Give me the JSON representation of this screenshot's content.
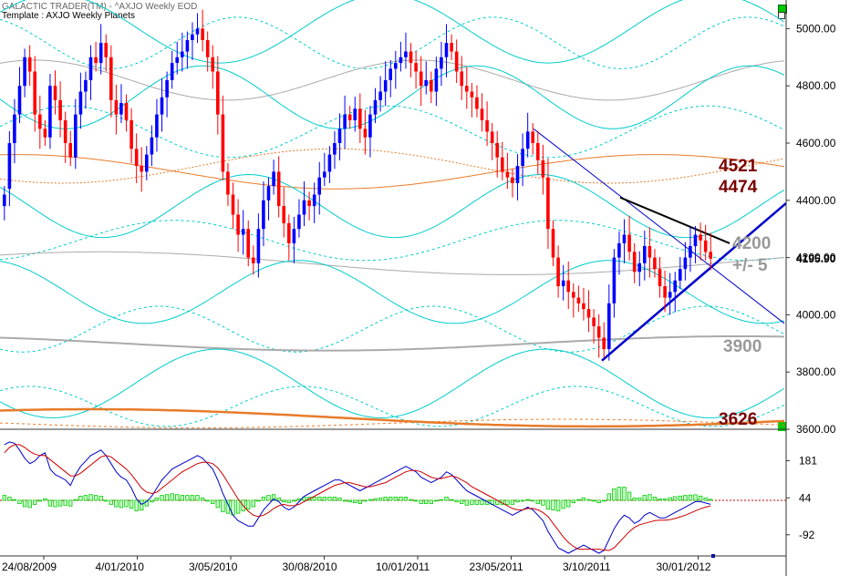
{
  "header": {
    "title": "GALACTIC TRADER(TM) - ^AXJO Weekly EOD",
    "template": "Template : AXJO Weekly Planets"
  },
  "chart_data": {
    "type": "candlestick",
    "title": "GALACTIC TRADER(TM) - ^AXJO Weekly EOD",
    "ylim": [
      3600,
      5100
    ],
    "y_ticks": [
      "5000.00",
      "4800.00",
      "4600.00",
      "4400.00",
      "4200.00",
      "4000.00",
      "3800.00",
      "3600.00"
    ],
    "last_price_label": "4195.90",
    "x_ticks": [
      "24/08/2009",
      "4/01/2010",
      "3/05/2010",
      "30/08/2010",
      "10/01/2011",
      "23/05/2011",
      "3/10/2011",
      "30/01/2012"
    ],
    "annotations": [
      {
        "text": "4521",
        "level": 4521,
        "color": "#7a0000"
      },
      {
        "text": "4474",
        "level": 4474,
        "color": "#7a0000"
      },
      {
        "text": "4200",
        "level": 4250,
        "color": "#999999"
      },
      {
        "text": "+/- 5",
        "level": 4178,
        "color": "#999999"
      },
      {
        "text": "3900",
        "level": 3900,
        "color": "#999999"
      },
      {
        "text": "3626",
        "level": 3640,
        "color": "#7a0000"
      }
    ],
    "indicator": {
      "y_ticks": [
        "181",
        "44",
        "-92"
      ],
      "zero_line_level": 35,
      "ylim": [
        -170,
        290
      ],
      "colors": {
        "fast": "#0000cc",
        "slow": "#cc0000",
        "histogram": "#00cc00"
      }
    },
    "colors": {
      "up": "#0000ff",
      "down": "#ff0000",
      "wave_light": "#00cccc",
      "wave_gray": "#aaaaaa",
      "wave_orange": "#e87b2a"
    },
    "series_close": [
      4420,
      4600,
      4700,
      4800,
      4900,
      4850,
      4700,
      4650,
      4620,
      4800,
      4750,
      4680,
      4600,
      4550,
      4700,
      4780,
      4820,
      4900,
      4880,
      4950,
      4900,
      4750,
      4700,
      4740,
      4680,
      4580,
      4520,
      4500,
      4560,
      4620,
      4700,
      4760,
      4820,
      4880,
      4900,
      4920,
      4960,
      4980,
      5000,
      4960,
      4900,
      4850,
      4700,
      4500,
      4420,
      4350,
      4280,
      4300,
      4200,
      4180,
      4300,
      4400,
      4450,
      4500,
      4380,
      4320,
      4250,
      4300,
      4350,
      4400,
      4380,
      4420,
      4480,
      4500,
      4560,
      4600,
      4650,
      4700,
      4680,
      4720,
      4650,
      4620,
      4700,
      4750,
      4780,
      4820,
      4860,
      4880,
      4900,
      4920,
      4880,
      4850,
      4800,
      4820,
      4780,
      4860,
      4900,
      4950,
      4920,
      4850,
      4800,
      4780,
      4760,
      4720,
      4680,
      4640,
      4600,
      4550,
      4500,
      4480,
      4460,
      4520,
      4580,
      4640,
      4600,
      4540,
      4480,
      4300,
      4200,
      4100,
      4120,
      4080,
      4060,
      4040,
      4020,
      3990,
      3960,
      3920,
      3880,
      4040,
      4200,
      4250,
      4280,
      4220,
      4150,
      4180,
      4240,
      4200,
      4160,
      4100,
      4060,
      4080,
      4120,
      4160,
      4200,
      4240,
      4280,
      4260,
      4220,
      4196
    ],
    "series_open": [
      4380,
      4440,
      4600,
      4700,
      4800,
      4900,
      4850,
      4700,
      4650,
      4620,
      4800,
      4750,
      4680,
      4600,
      4550,
      4700,
      4780,
      4820,
      4900,
      4880,
      4950,
      4900,
      4750,
      4700,
      4740,
      4680,
      4580,
      4520,
      4500,
      4560,
      4620,
      4700,
      4760,
      4820,
      4880,
      4900,
      4920,
      4960,
      4980,
      5000,
      4960,
      4900,
      4850,
      4700,
      4500,
      4420,
      4350,
      4280,
      4300,
      4200,
      4180,
      4300,
      4400,
      4450,
      4500,
      4380,
      4320,
      4250,
      4300,
      4350,
      4400,
      4380,
      4420,
      4480,
      4500,
      4560,
      4600,
      4650,
      4700,
      4680,
      4720,
      4650,
      4620,
      4700,
      4750,
      4780,
      4820,
      4860,
      4880,
      4900,
      4920,
      4880,
      4850,
      4800,
      4820,
      4780,
      4860,
      4900,
      4950,
      4920,
      4850,
      4800,
      4780,
      4760,
      4720,
      4680,
      4640,
      4600,
      4550,
      4500,
      4480,
      4460,
      4520,
      4580,
      4640,
      4600,
      4540,
      4480,
      4300,
      4200,
      4100,
      4120,
      4080,
      4060,
      4040,
      4020,
      3990,
      3960,
      3920,
      3880,
      4040,
      4200,
      4250,
      4280,
      4220,
      4150,
      4180,
      4240,
      4200,
      4160,
      4100,
      4060,
      4080,
      4120,
      4160,
      4200,
      4240,
      4280,
      4260,
      4220
    ],
    "series_fast": [
      240,
      250,
      245,
      220,
      190,
      170,
      180,
      200,
      210,
      150,
      130,
      120,
      110,
      90,
      130,
      160,
      180,
      200,
      210,
      220,
      200,
      170,
      140,
      120,
      110,
      80,
      40,
      20,
      30,
      50,
      80,
      110,
      130,
      150,
      160,
      170,
      180,
      190,
      200,
      190,
      170,
      150,
      110,
      60,
      20,
      -20,
      -40,
      -50,
      -60,
      -60,
      -30,
      0,
      20,
      40,
      30,
      10,
      0,
      10,
      30,
      50,
      60,
      70,
      80,
      90,
      100,
      110,
      110,
      100,
      90,
      80,
      70,
      80,
      90,
      100,
      110,
      120,
      130,
      140,
      150,
      160,
      150,
      140,
      120,
      110,
      100,
      110,
      120,
      140,
      130,
      110,
      90,
      70,
      60,
      50,
      40,
      30,
      20,
      10,
      0,
      -10,
      -20,
      -10,
      0,
      10,
      0,
      -20,
      -40,
      -80,
      -110,
      -140,
      -150,
      -160,
      -150,
      -140,
      -130,
      -140,
      -150,
      -160,
      -150,
      -110,
      -70,
      -40,
      -20,
      -30,
      -50,
      -40,
      -20,
      -10,
      -20,
      -30,
      -30,
      -20,
      -10,
      0,
      10,
      20,
      30,
      30,
      25,
      20
    ],
    "series_slow": [
      210,
      230,
      240,
      240,
      230,
      215,
      205,
      200,
      200,
      185,
      170,
      155,
      140,
      125,
      125,
      135,
      150,
      165,
      180,
      195,
      200,
      195,
      180,
      165,
      150,
      130,
      105,
      80,
      65,
      60,
      65,
      80,
      95,
      110,
      125,
      140,
      150,
      160,
      170,
      175,
      175,
      170,
      155,
      130,
      100,
      70,
      40,
      15,
      -5,
      -20,
      -25,
      -20,
      -10,
      5,
      15,
      20,
      15,
      15,
      20,
      30,
      40,
      50,
      60,
      70,
      80,
      90,
      95,
      100,
      100,
      95,
      90,
      85,
      85,
      90,
      95,
      100,
      110,
      120,
      130,
      140,
      145,
      145,
      140,
      130,
      120,
      115,
      115,
      120,
      125,
      120,
      110,
      100,
      85,
      75,
      65,
      55,
      45,
      35,
      25,
      15,
      5,
      0,
      0,
      5,
      5,
      0,
      -10,
      -25,
      -50,
      -75,
      -100,
      -120,
      -135,
      -145,
      -145,
      -145,
      -145,
      -145,
      -148,
      -150,
      -140,
      -120,
      -100,
      -80,
      -65,
      -55,
      -50,
      -45,
      -40,
      -38,
      -38,
      -36,
      -32,
      -26,
      -20,
      -12,
      -4,
      4,
      10,
      14,
      16,
      16
    ]
  }
}
